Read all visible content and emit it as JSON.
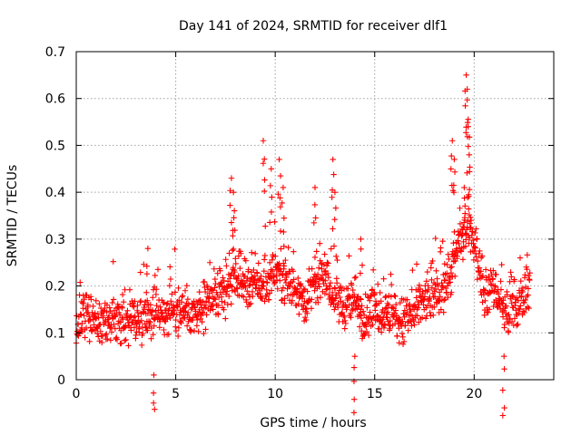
{
  "chart_data": {
    "type": "scatter",
    "title": "Day 141 of 2024, SRMTID for receiver dlf1",
    "xlabel": "GPS time / hours",
    "ylabel": "SRMTID / TECUs",
    "xlim": [
      0,
      24
    ],
    "ylim": [
      0,
      0.7
    ],
    "xticks": [
      0,
      5,
      10,
      15,
      20
    ],
    "yticks": [
      0,
      0.1,
      0.2,
      0.3,
      0.4,
      0.5,
      0.6,
      0.7
    ],
    "xtick_labels": [
      "0",
      "5",
      "10",
      "15",
      "20"
    ],
    "ytick_labels": [
      "0",
      "0.1",
      "0.2",
      "0.3",
      "0.4",
      "0.5",
      "0.6",
      "0.7"
    ],
    "grid": true,
    "marker": "+",
    "color": "#ff0000",
    "series": [
      {
        "name": "SRMTID",
        "trend": {
          "x": [
            0,
            0.5,
            1,
            1.5,
            2,
            2.5,
            3,
            3.5,
            4,
            4.5,
            5,
            5.5,
            6,
            6.5,
            7,
            7.5,
            8,
            8.5,
            9,
            9.5,
            10,
            10.5,
            11,
            11.5,
            12,
            12.5,
            13,
            13.5,
            14,
            14.5,
            15,
            15.5,
            16,
            16.5,
            17,
            17.5,
            18,
            18.5,
            19,
            19.5,
            20,
            20.5,
            21,
            21.5,
            22,
            22.5,
            22.8
          ],
          "y": [
            0.12,
            0.13,
            0.12,
            0.11,
            0.13,
            0.12,
            0.13,
            0.14,
            0.15,
            0.14,
            0.15,
            0.15,
            0.14,
            0.15,
            0.17,
            0.19,
            0.22,
            0.2,
            0.21,
            0.2,
            0.24,
            0.22,
            0.19,
            0.17,
            0.2,
            0.22,
            0.17,
            0.16,
            0.17,
            0.13,
            0.15,
            0.14,
            0.13,
            0.12,
            0.14,
            0.17,
            0.18,
            0.19,
            0.25,
            0.32,
            0.3,
            0.18,
            0.2,
            0.15,
            0.14,
            0.18,
            0.22
          ]
        },
        "peaks": [
          {
            "x": 3.6,
            "y": 0.28
          },
          {
            "x": 7.8,
            "y": 0.43
          },
          {
            "x": 7.9,
            "y": 0.4
          },
          {
            "x": 9.4,
            "y": 0.51
          },
          {
            "x": 9.8,
            "y": 0.45
          },
          {
            "x": 10.2,
            "y": 0.47
          },
          {
            "x": 10.4,
            "y": 0.41
          },
          {
            "x": 12.0,
            "y": 0.41
          },
          {
            "x": 12.9,
            "y": 0.47
          },
          {
            "x": 13.0,
            "y": 0.4
          },
          {
            "x": 14.3,
            "y": 0.3
          },
          {
            "x": 18.9,
            "y": 0.51
          },
          {
            "x": 19.0,
            "y": 0.47
          },
          {
            "x": 19.6,
            "y": 0.65
          },
          {
            "x": 19.65,
            "y": 0.62
          },
          {
            "x": 19.7,
            "y": 0.54
          },
          {
            "x": 19.75,
            "y": 0.48
          },
          {
            "x": 19.5,
            "y": 0.41
          },
          {
            "x": 3.9,
            "y": 0.01
          },
          {
            "x": 14.0,
            "y": 0.05
          },
          {
            "x": 21.5,
            "y": 0.05
          }
        ]
      }
    ]
  }
}
